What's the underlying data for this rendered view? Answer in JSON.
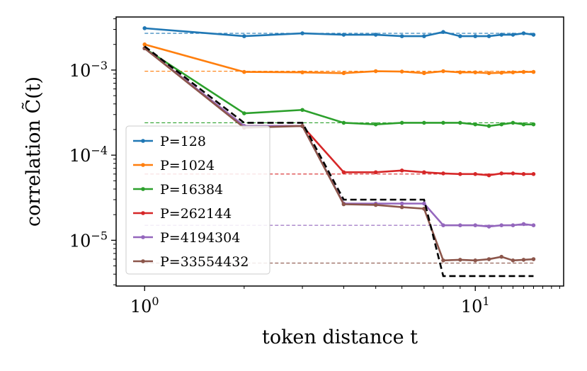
{
  "chart_data": {
    "type": "line",
    "xlabel": "token distance t",
    "ylabel": "correlation C̃(t)",
    "x_scale": "log",
    "y_scale": "log",
    "xlim": [
      0.82,
      18.5
    ],
    "ylim": [
      2.9e-06,
      0.0042
    ],
    "x_ticks": [
      {
        "value": 1,
        "label": "10^0"
      },
      {
        "value": 10,
        "label": "10^1"
      }
    ],
    "y_ticks": [
      {
        "value": 1e-05,
        "label": "10^-5"
      },
      {
        "value": 0.0001,
        "label": "10^-4"
      },
      {
        "value": 0.001,
        "label": "10^-3"
      }
    ],
    "grid": false,
    "legend": {
      "position": "lower-left",
      "entries": [
        "P=128",
        "P=1024",
        "P=16384",
        "P=262144",
        "P=4194304",
        "P=33554432"
      ]
    },
    "x": [
      1,
      2,
      3,
      4,
      5,
      6,
      7,
      8,
      9,
      10,
      11,
      12,
      13,
      14,
      15
    ],
    "series": [
      {
        "name": "P=128",
        "color": "#1f77b4",
        "plateau": 0.0027,
        "values": [
          0.0031,
          0.0025,
          0.0027,
          0.0026,
          0.0026,
          0.0025,
          0.0025,
          0.0028,
          0.0025,
          0.0025,
          0.0025,
          0.0026,
          0.0026,
          0.0027,
          0.0026
        ]
      },
      {
        "name": "P=1024",
        "color": "#ff7f0e",
        "plateau": 0.00097,
        "values": [
          0.002,
          0.00095,
          0.00094,
          0.00092,
          0.00097,
          0.00096,
          0.00092,
          0.00097,
          0.00094,
          0.00094,
          0.00092,
          0.00093,
          0.00094,
          0.00095,
          0.00095
        ]
      },
      {
        "name": "P=16384",
        "color": "#2ca02c",
        "plateau": 0.00024,
        "values": [
          0.0018,
          0.00031,
          0.00034,
          0.00024,
          0.00023,
          0.00024,
          0.00024,
          0.00024,
          0.00024,
          0.00023,
          0.00022,
          0.00023,
          0.00024,
          0.00023,
          0.00023
        ]
      },
      {
        "name": "P=262144",
        "color": "#d62728",
        "plateau": 6e-05,
        "values": [
          0.0018,
          0.00022,
          0.00022,
          6.3e-05,
          6.3e-05,
          6.6e-05,
          6.3e-05,
          6.1e-05,
          6e-05,
          6e-05,
          5.8e-05,
          6.1e-05,
          6.1e-05,
          6e-05,
          6e-05
        ]
      },
      {
        "name": "P=4194304",
        "color": "#9467bd",
        "plateau": 1.5e-05,
        "values": [
          0.0018,
          0.00022,
          0.00022,
          2.7e-05,
          2.7e-05,
          2.7e-05,
          2.7e-05,
          1.5e-05,
          1.5e-05,
          1.5e-05,
          1.45e-05,
          1.5e-05,
          1.5e-05,
          1.55e-05,
          1.5e-05
        ]
      },
      {
        "name": "P=33554432",
        "color": "#8c564b",
        "plateau": 5.4e-06,
        "values": [
          0.0018,
          0.00021,
          0.00022,
          2.65e-05,
          2.6e-05,
          2.45e-05,
          2.35e-05,
          5.8e-06,
          5.9e-06,
          5.8e-06,
          6e-06,
          6.4e-06,
          5.8e-06,
          5.9e-06,
          6e-06
        ]
      }
    ],
    "reference": {
      "style": "black-dashed",
      "values": [
        0.0019,
        0.00024,
        0.00024,
        3e-05,
        3e-05,
        3e-05,
        3e-05,
        3.8e-06,
        3.8e-06,
        3.8e-06,
        3.8e-06,
        3.8e-06,
        3.8e-06,
        3.8e-06,
        3.8e-06
      ]
    }
  }
}
